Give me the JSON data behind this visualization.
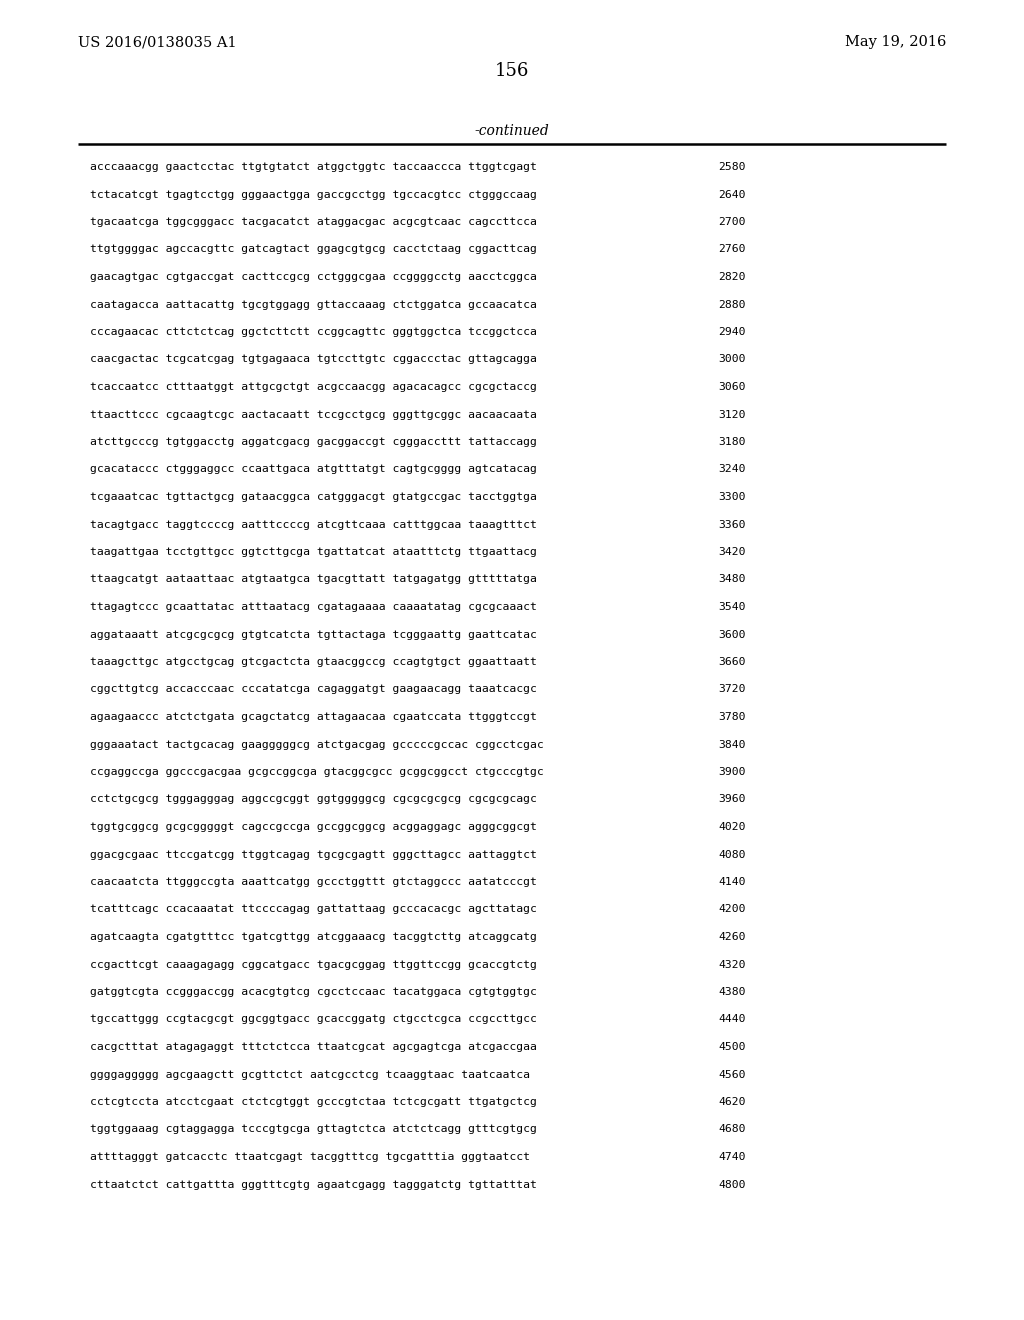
{
  "patent_number": "US 2016/0138035 A1",
  "date": "May 19, 2016",
  "page_number": "156",
  "continued_text": "-continued",
  "background_color": "#ffffff",
  "text_color": "#000000",
  "sequences": [
    [
      "acccaaacgg gaactcctac ttgtgtatct atggctggtc taccaaccca ttggtcgagt",
      "2580"
    ],
    [
      "tctacatcgt tgagtcctgg gggaactgga gaccgcctgg tgccacgtcc ctgggccaag",
      "2640"
    ],
    [
      "tgacaatcga tggcgggacc tacgacatct ataggacgac acgcgtcaac cagccttcca",
      "2700"
    ],
    [
      "ttgtggggac agccacgttc gatcagtact ggagcgtgcg cacctctaag cggacttcag",
      "2760"
    ],
    [
      "gaacagtgac cgtgaccgat cacttccgcg cctgggcgaa ccggggcctg aacctcggca",
      "2820"
    ],
    [
      "caatagacca aattacattg tgcgtggagg gttaccaaag ctctggatca gccaacatca",
      "2880"
    ],
    [
      "cccagaacac cttctctcag ggctcttctt ccggcagttc gggtggctca tccggctcca",
      "2940"
    ],
    [
      "caacgactac tcgcatcgag tgtgagaaca tgtccttgtc cggaccctac gttagcagga",
      "3000"
    ],
    [
      "tcaccaatcc ctttaatggt attgcgctgt acgccaacgg agacacagcc cgcgctaccg",
      "3060"
    ],
    [
      "ttaacttccc cgcaagtcgc aactacaatt tccgcctgcg gggttgcggc aacaacaata",
      "3120"
    ],
    [
      "atcttgcccg tgtggacctg aggatcgacg gacggaccgt cgggaccttt tattaccagg",
      "3180"
    ],
    [
      "gcacataccc ctgggaggcc ccaattgaca atgtttatgt cagtgcgggg agtcatacag",
      "3240"
    ],
    [
      "tcgaaatcac tgttactgcg gataacggca catgggacgt gtatgccgac tacctggtga",
      "3300"
    ],
    [
      "tacagtgacc taggtccccg aatttccccg atcgttcaaa catttggcaa taaagtttct",
      "3360"
    ],
    [
      "taagattgaa tcctgttgcc ggtcttgcga tgattatcat ataatttctg ttgaattacg",
      "3420"
    ],
    [
      "ttaagcatgt aataattaac atgtaatgca tgacgttatt tatgagatgg gtttttatga",
      "3480"
    ],
    [
      "ttagagtccc gcaattatac atttaatacg cgatagaaaa caaaatatag cgcgcaaact",
      "3540"
    ],
    [
      "aggataaatt atcgcgcgcg gtgtcatcta tgttactaga tcgggaattg gaattcatac",
      "3600"
    ],
    [
      "taaagcttgc atgcctgcag gtcgactcta gtaacggccg ccagtgtgct ggaattaatt",
      "3660"
    ],
    [
      "cggcttgtcg accacccaac cccatatcga cagaggatgt gaagaacagg taaatcacgc",
      "3720"
    ],
    [
      "agaagaaccc atctctgata gcagctatcg attagaacaa cgaatccata ttgggtccgt",
      "3780"
    ],
    [
      "gggaaatact tactgcacag gaagggggcg atctgacgag gcccccgccac cggcctcgac",
      "3840"
    ],
    [
      "ccgaggccga ggcccgacgaa gcgccggcga gtacggcgcc gcggcggcct ctgcccgtgc",
      "3900"
    ],
    [
      "cctctgcgcg tgggagggag aggccgcggt ggtgggggcg cgcgcgcgcg cgcgcgcagc",
      "3960"
    ],
    [
      "tggtgcggcg gcgcgggggt cagccgccga gccggcggcg acggaggagc agggcggcgt",
      "4020"
    ],
    [
      "ggacgcgaac ttccgatcgg ttggtcagag tgcgcgagtt gggcttagcc aattaggtct",
      "4080"
    ],
    [
      "caacaatcta ttgggccgta aaattcatgg gccctggttt gtctaggccc aatatcccgt",
      "4140"
    ],
    [
      "tcatttcagc ccacaaatat ttccccagag gattattaag gcccacacgc agcttatagc",
      "4200"
    ],
    [
      "agatcaagta cgatgtttcc tgatcgttgg atcggaaacg tacggtcttg atcaggcatg",
      "4260"
    ],
    [
      "ccgacttcgt caaagagagg cggcatgacc tgacgcggag ttggttccgg gcaccgtctg",
      "4320"
    ],
    [
      "gatggtcgta ccgggaccgg acacgtgtcg cgcctccaac tacatggaca cgtgtggtgc",
      "4380"
    ],
    [
      "tgccattggg ccgtacgcgt ggcggtgacc gcaccggatg ctgcctcgca ccgccttgcc",
      "4440"
    ],
    [
      "cacgctttat atagagaggt tttctctcca ttaatcgcat agcgagtcga atcgaccgaa",
      "4500"
    ],
    [
      "ggggaggggg agcgaagctt gcgttctct aatcgcctcg tcaaggtaac taatcaatca",
      "4560"
    ],
    [
      "cctcgtccta atcctcgaat ctctcgtggt gcccgtctaa tctcgcgatt ttgatgctcg",
      "4620"
    ],
    [
      "tggtggaaag cgtaggagga tcccgtgcga gttagtctca atctctcagg gtttcgtgcg",
      "4680"
    ],
    [
      "attttagggt gatcacctc ttaatcgagt tacggtttcg tgcgatttia gggtaatcct",
      "4740"
    ],
    [
      "cttaatctct cattgattta gggtttcgtg agaatcgagg tagggatctg tgttatttat",
      "4800"
    ]
  ]
}
